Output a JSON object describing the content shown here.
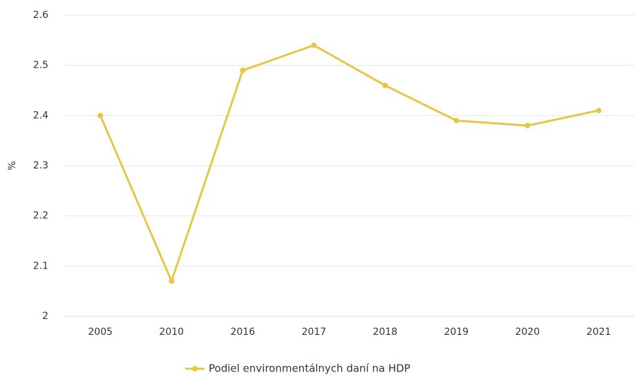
{
  "chart_data": {
    "type": "line",
    "y_label": "%",
    "categories": [
      "2005",
      "2010",
      "2016",
      "2017",
      "2018",
      "2019",
      "2020",
      "2021"
    ],
    "series": [
      {
        "name": "Podiel environmentálnych daní na HDP",
        "color": "#e6c744",
        "values": [
          2.4,
          2.07,
          2.49,
          2.54,
          2.46,
          2.39,
          2.38,
          2.41
        ]
      }
    ],
    "ylim": [
      2,
      2.6
    ],
    "yticks": [
      2,
      2.1,
      2.2,
      2.3,
      2.4,
      2.5,
      2.6
    ],
    "grid": true,
    "legend": "bottom"
  }
}
